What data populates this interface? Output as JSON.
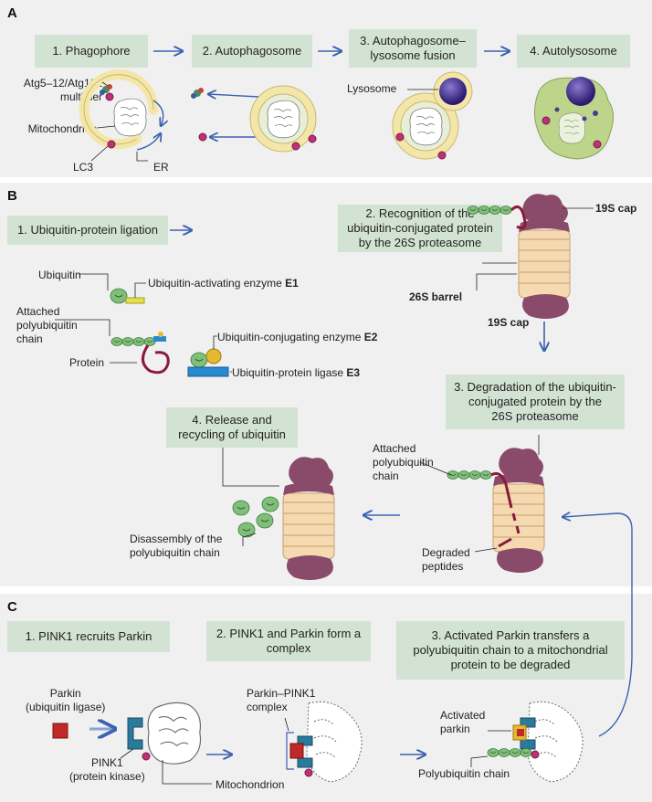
{
  "panels": {
    "a": {
      "letter": "A",
      "steps": [
        "1. Phagophore",
        "2. Autophagosome",
        "3. Autophagosome–\nlysosome fusion",
        "4. Autolysosome"
      ],
      "labels": {
        "atg": "Atg5–12/Atg16L\nmultimer",
        "mito": "Mitochondrion",
        "lc3": "LC3",
        "er": "ER",
        "lysosome": "Lysosome"
      }
    },
    "b": {
      "letter": "B",
      "steps": [
        "1. Ubiquitin-protein ligation",
        "2. Recognition of the\nubiquitin-conjugated protein\nby the 26S proteasome",
        "3. Degradation of the ubiquitin-\nconjugated protein by the\n26S proteasome",
        "4. Release and\nrecycling of ubiquitin"
      ],
      "labels": {
        "ubiquitin": "Ubiquitin",
        "e1_text": "Ubiquitin-activating enzyme ",
        "e1_code": "E1",
        "chain": "Attached\npolyubiquitin\nchain",
        "protein": "Protein",
        "e2_text": "Ubiquitin-conjugating enzyme ",
        "e2_code": "E2",
        "e3_text": "Ubiquitin-protein ligase ",
        "e3_code": "E3",
        "cap_top": "19S cap",
        "barrel": "26S barrel",
        "cap_bottom": "19S cap",
        "chain2": "Attached\npolyubiquitin\nchain",
        "disassembly": "Disassembly of the\npolyubiquitin chain",
        "peptides": "Degraded\npeptides"
      }
    },
    "c": {
      "letter": "C",
      "steps": [
        "1. PINK1 recruits Parkin",
        "2. PINK1 and Parkin form a\ncomplex",
        "3. Activated Parkin transfers a\npolyubiquitin chain to a mitochondrial\nprotein to be degraded"
      ],
      "labels": {
        "parkin": "Parkin\n(ubiquitin ligase)",
        "pink1": "PINK1\n(protein kinase)",
        "mito": "Mitochondrion",
        "complex": "Parkin–PINK1\ncomplex",
        "activated": "Activated\nparkin",
        "polyub": "Polyubiquitin chain"
      }
    }
  },
  "colors": {
    "panel_bg": "#f0f0f0",
    "step_box": "#d3e3d3",
    "arrow": "#3a62b0",
    "membrane": "#f3e6a8",
    "lysosome": "#3a2a80",
    "autolysosome": "#bcd58a",
    "ubiquitin": "#7fbf7a",
    "proteasome_purple": "#8a4a6a",
    "proteasome_cream": "#f5d9b0",
    "protein": "#8a1a3a",
    "e1": "#e8e04a",
    "e2": "#e8b830",
    "e3": "#2a8ad0",
    "parkin": "#c0282a",
    "pink1": "#2a7a9a",
    "lc3": "#c0307a"
  }
}
